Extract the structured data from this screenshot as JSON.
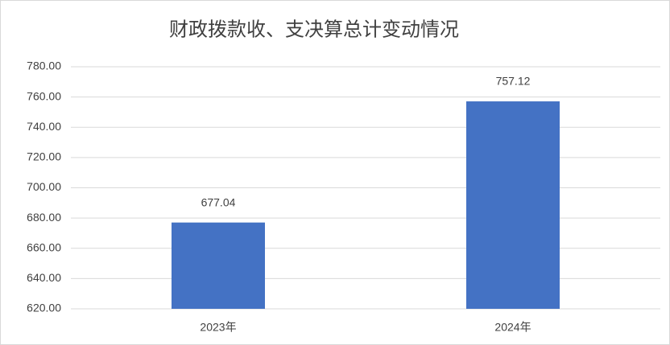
{
  "chart_data": {
    "type": "bar",
    "title": "财政拨款收、支决算总计变动情况",
    "categories": [
      "2023年",
      "2024年"
    ],
    "values": [
      677.04,
      757.12
    ],
    "color": "#4472c4",
    "ylim": [
      620,
      780
    ],
    "yticks": [
      {
        "value": 620,
        "label": "620.00"
      },
      {
        "value": 640,
        "label": "640.00"
      },
      {
        "value": 660,
        "label": "660.00"
      },
      {
        "value": 680,
        "label": "680.00"
      },
      {
        "value": 700,
        "label": "700.00"
      },
      {
        "value": 720,
        "label": "720.00"
      },
      {
        "value": 740,
        "label": "740.00"
      },
      {
        "value": 760,
        "label": "760.00"
      },
      {
        "value": 780,
        "label": "780.00"
      }
    ],
    "grid": true
  }
}
